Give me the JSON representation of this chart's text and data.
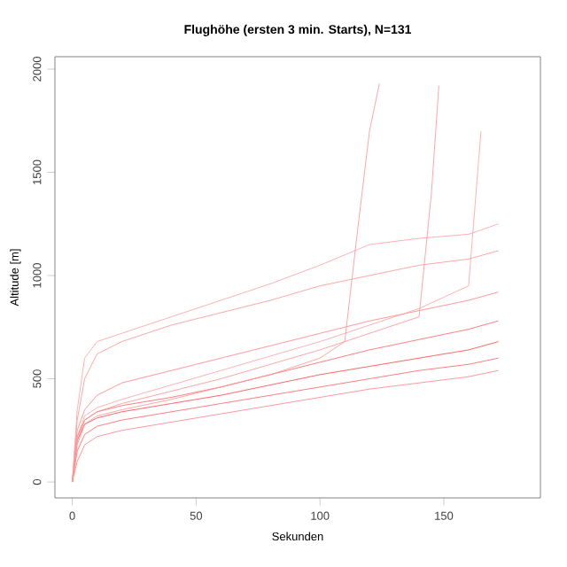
{
  "chart_data": {
    "type": "line",
    "title": "Flughöhe (ersten 3 min. Starts), N=131",
    "xlabel": "Sekunden",
    "ylabel": "Altitude [m]",
    "x": [
      0,
      2,
      5,
      10,
      20,
      40,
      60,
      80,
      100,
      120,
      140,
      160,
      172
    ],
    "xlim": [
      -7,
      189
    ],
    "ylim": [
      -77,
      2060
    ],
    "xticks": [
      0,
      50,
      100,
      150
    ],
    "yticks": [
      0,
      500,
      1000,
      1500,
      2000
    ],
    "grid": false,
    "marker": "none",
    "line_style": "solid",
    "series": [
      {
        "color": "#ff8080",
        "values": [
          0,
          100,
          180,
          220,
          250,
          290,
          330,
          370,
          410,
          450,
          480,
          510,
          540
        ]
      },
      {
        "color": "#ff6060",
        "values": [
          0,
          150,
          230,
          270,
          300,
          340,
          380,
          420,
          460,
          500,
          540,
          570,
          600
        ]
      },
      {
        "color": "#ff4040",
        "values": [
          0,
          200,
          280,
          310,
          340,
          380,
          420,
          470,
          520,
          560,
          600,
          640,
          680
        ]
      },
      {
        "color": "#ff6060",
        "values": [
          0,
          220,
          300,
          340,
          370,
          410,
          460,
          520,
          580,
          640,
          690,
          740,
          780
        ]
      },
      {
        "color": "#ff8080",
        "values": [
          0,
          250,
          350,
          420,
          480,
          540,
          600,
          660,
          720,
          780,
          830,
          880,
          920
        ]
      },
      {
        "color": "#ff9090",
        "values": [
          0,
          300,
          500,
          620,
          680,
          760,
          820,
          880,
          950,
          1000,
          1050,
          1080,
          1120
        ]
      },
      {
        "color": "#ffa0a0",
        "values": [
          0,
          350,
          600,
          680,
          720,
          800,
          880,
          960,
          1050,
          1150,
          1180,
          1200,
          1250
        ]
      },
      {
        "color": "#ff9090",
        "x": [
          0,
          2,
          5,
          10,
          20,
          40,
          60,
          80,
          100,
          110,
          115,
          120,
          124
        ],
        "values": [
          0,
          180,
          280,
          320,
          350,
          400,
          460,
          520,
          600,
          680,
          1200,
          1700,
          1930
        ]
      },
      {
        "color": "#ff9090",
        "x": [
          0,
          2,
          5,
          10,
          20,
          40,
          60,
          80,
          100,
          120,
          140,
          145,
          148
        ],
        "values": [
          0,
          200,
          300,
          340,
          380,
          440,
          500,
          570,
          640,
          720,
          800,
          1400,
          1920
        ]
      },
      {
        "color": "#ffa0a0",
        "x": [
          0,
          2,
          5,
          10,
          20,
          40,
          60,
          80,
          100,
          120,
          140,
          160,
          165
        ],
        "values": [
          0,
          220,
          320,
          360,
          400,
          470,
          540,
          610,
          680,
          760,
          840,
          950,
          1700
        ]
      }
    ]
  }
}
